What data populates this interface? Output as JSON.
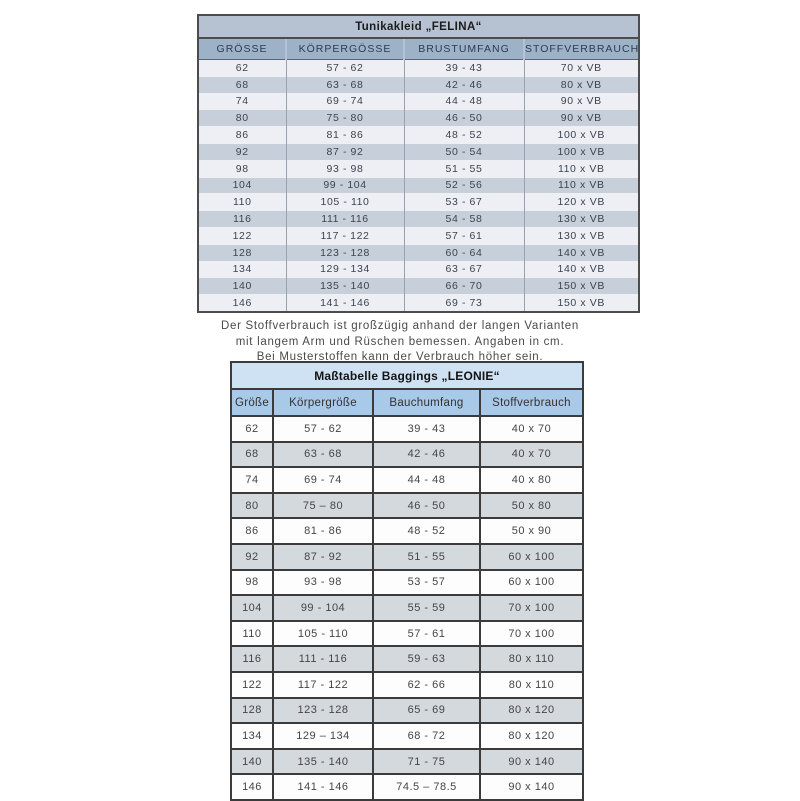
{
  "colors": {
    "felina_title_bg": "#b6c2d1",
    "felina_header_bg": "#9db1c7",
    "felina_row_light": "#edeff4",
    "felina_row_dark": "#c7cfda",
    "leonie_title_bg": "#cfe2f3",
    "leonie_header_bg": "#a9c9e8",
    "leonie_row_light": "#fdfdfd",
    "leonie_row_dark": "#d4d9de",
    "border_dark": "#3b3b3b"
  },
  "felina": {
    "title": "Tunikakleid „FELINA“",
    "columns": [
      "GRÖSSE",
      "KÖRPERGÖSSE",
      "BRUSTUMFANG",
      "STOFFVERBRAUCH"
    ],
    "rows": [
      [
        "62",
        "57 - 62",
        "39 - 43",
        "70 x VB"
      ],
      [
        "68",
        "63 - 68",
        "42 - 46",
        "80 x VB"
      ],
      [
        "74",
        "69 - 74",
        "44 - 48",
        "90 x VB"
      ],
      [
        "80",
        "75 - 80",
        "46 - 50",
        "90 x VB"
      ],
      [
        "86",
        "81 - 86",
        "48 - 52",
        "100 x VB"
      ],
      [
        "92",
        "87 - 92",
        "50 - 54",
        "100 x VB"
      ],
      [
        "98",
        "93 - 98",
        "51 - 55",
        "110 x VB"
      ],
      [
        "104",
        "99 - 104",
        "52 - 56",
        "110 x VB"
      ],
      [
        "110",
        "105 - 110",
        "53 - 67",
        "120 x VB"
      ],
      [
        "116",
        "111 - 116",
        "54 - 58",
        "130 x VB"
      ],
      [
        "122",
        "117 - 122",
        "57 - 61",
        "130 x VB"
      ],
      [
        "128",
        "123 - 128",
        "60 - 64",
        "140 x VB"
      ],
      [
        "134",
        "129 - 134",
        "63 - 67",
        "140 x VB"
      ],
      [
        "140",
        "135 - 140",
        "66 - 70",
        "150 x VB"
      ],
      [
        "146",
        "141 - 146",
        "69 - 73",
        "150 x VB"
      ]
    ]
  },
  "note": {
    "line1": "Der Stoffverbrauch ist großzügig anhand der langen Varianten",
    "line2": "mit langem Arm und Rüschen bemessen. Angaben in cm.",
    "line3": "Bei Musterstoffen kann der Verbrauch höher sein."
  },
  "leonie": {
    "title": "Maßtabelle Baggings „LEONIE“",
    "columns": [
      "Größe",
      "Körpergröße",
      "Bauchumfang",
      "Stoffverbrauch"
    ],
    "rows": [
      [
        "62",
        "57 - 62",
        "39 - 43",
        "40 x 70"
      ],
      [
        "68",
        "63 - 68",
        "42 - 46",
        "40 x 70"
      ],
      [
        "74",
        "69 - 74",
        "44 - 48",
        "40 x 80"
      ],
      [
        "80",
        "75 – 80",
        "46 - 50",
        "50 x 80"
      ],
      [
        "86",
        "81 - 86",
        "48 - 52",
        "50 x 90"
      ],
      [
        "92",
        "87 - 92",
        "51 - 55",
        "60 x 100"
      ],
      [
        "98",
        "93 - 98",
        "53 - 57",
        "60 x 100"
      ],
      [
        "104",
        "99 - 104",
        "55 - 59",
        "70 x 100"
      ],
      [
        "110",
        "105 - 110",
        "57 - 61",
        "70 x 100"
      ],
      [
        "116",
        "111 - 116",
        "59 - 63",
        "80 x 110"
      ],
      [
        "122",
        "117 - 122",
        "62 - 66",
        "80 x 110"
      ],
      [
        "128",
        "123 - 128",
        "65 - 69",
        "80 x 120"
      ],
      [
        "134",
        "129 – 134",
        "68 - 72",
        "80 x 120"
      ],
      [
        "140",
        "135 - 140",
        "71 - 75",
        "90 x 140"
      ],
      [
        "146",
        "141 - 146",
        "74.5 – 78.5",
        "90 x 140"
      ]
    ]
  }
}
